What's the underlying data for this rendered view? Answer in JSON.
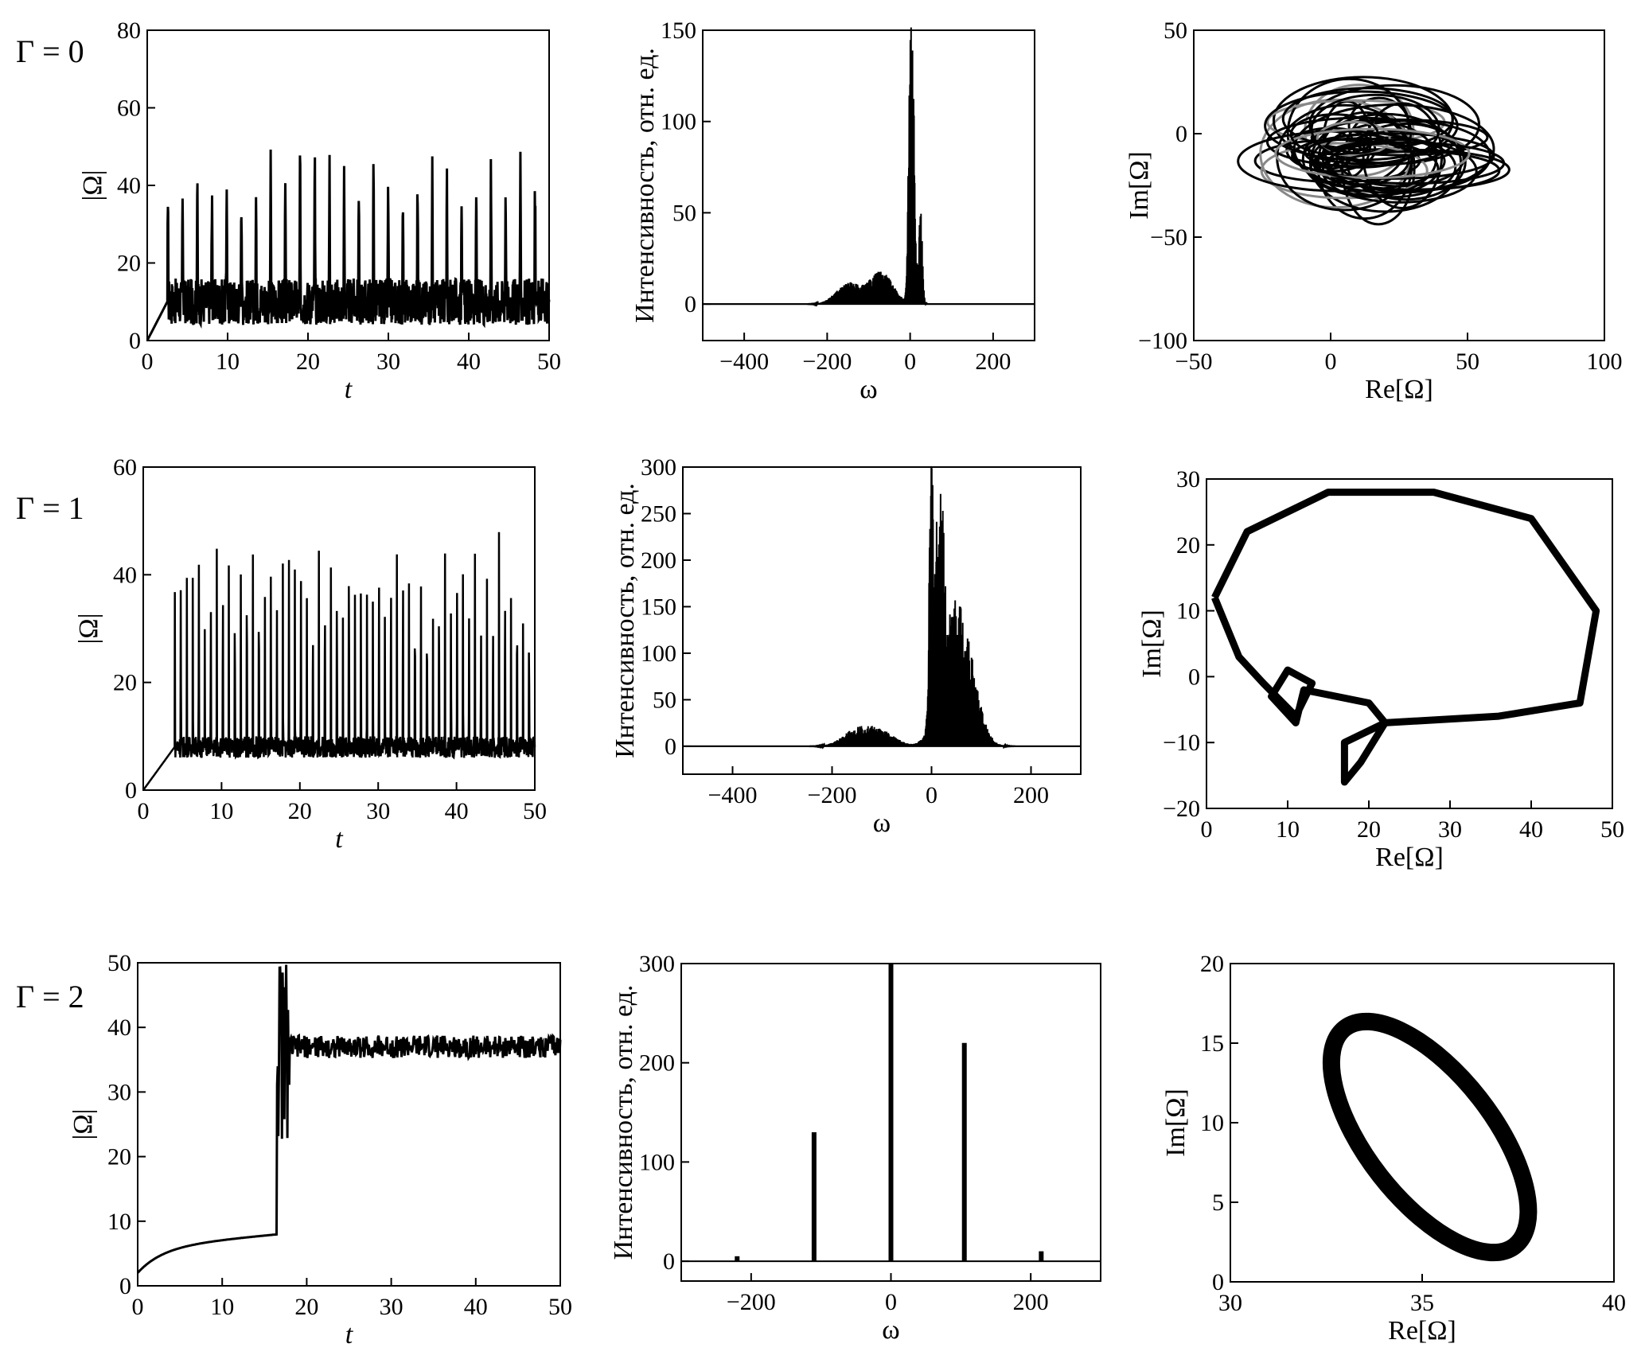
{
  "row_labels": [
    "Γ = 0",
    "Γ = 1",
    "Γ = 2"
  ],
  "chart_data": [
    {
      "row": 0,
      "type": "line",
      "xlabel": "t",
      "ylabel": "|Ω|",
      "xlim": [
        0,
        50
      ],
      "ylim": [
        0,
        80
      ],
      "xticks": [
        "0",
        "10",
        "20",
        "30",
        "40",
        "50"
      ],
      "yticks": [
        "0",
        "20",
        "40",
        "60",
        "80"
      ],
      "series": [
        {
          "kind": "spiky",
          "base": 10,
          "peak": 50,
          "spikes": 26,
          "start": 2.5
        }
      ]
    },
    {
      "row": 0,
      "type": "line",
      "xlabel": "ω",
      "ylabel": "Интенсивность, отн. ед.",
      "xlim": [
        -500,
        300
      ],
      "ylim": [
        -20,
        150
      ],
      "xticks": [
        "−400",
        "−200",
        "0",
        "200"
      ],
      "yticks": [
        "0",
        "50",
        "100",
        "150"
      ],
      "series": [
        {
          "kind": "spectrum",
          "peaks": [
            [
              0,
              150
            ],
            [
              8,
              110
            ],
            [
              25,
              55
            ],
            [
              -70,
              18
            ],
            [
              -150,
              12
            ]
          ],
          "broad": 14
        }
      ]
    },
    {
      "row": 0,
      "type": "line",
      "xlabel": "Re[Ω]",
      "ylabel": "Im[Ω]",
      "xlim": [
        -50,
        100
      ],
      "ylim": [
        -100,
        50
      ],
      "xticks": [
        "−50",
        "0",
        "50",
        "100"
      ],
      "yticks": [
        "−100",
        "−50",
        "0",
        "50"
      ],
      "series": [
        {
          "kind": "chaotic-orbit",
          "center": [
            15,
            -5
          ],
          "spread": [
            22,
            18
          ]
        }
      ]
    },
    {
      "row": 1,
      "type": "line",
      "xlabel": "t",
      "ylabel": "|Ω|",
      "xlim": [
        0,
        50
      ],
      "ylim": [
        0,
        60
      ],
      "xticks": [
        "0",
        "10",
        "20",
        "30",
        "40",
        "50"
      ],
      "yticks": [
        "0",
        "20",
        "40",
        "60"
      ],
      "series": [
        {
          "kind": "periodic-spikes",
          "base": 8,
          "peak": 49,
          "spikes": 60,
          "start": 4
        }
      ]
    },
    {
      "row": 1,
      "type": "line",
      "xlabel": "ω",
      "ylabel": "Интенсивность, отн. ед.",
      "xlim": [
        -500,
        300
      ],
      "ylim": [
        -30,
        300
      ],
      "xticks": [
        "−400",
        "−200",
        "0",
        "200"
      ],
      "yticks": [
        "0",
        "50",
        "100",
        "150",
        "200",
        "250",
        "300"
      ],
      "series": [
        {
          "kind": "spectrum",
          "peaks": [
            [
              0,
              297
            ],
            [
              12,
              190
            ],
            [
              22,
              185
            ],
            [
              45,
              90
            ],
            [
              60,
              80
            ],
            [
              -150,
              18
            ],
            [
              -100,
              15
            ]
          ],
          "broad": 15
        }
      ]
    },
    {
      "row": 1,
      "type": "line",
      "xlabel": "Re[Ω]",
      "ylabel": "Im[Ω]",
      "xlim": [
        0,
        50
      ],
      "ylim": [
        -20,
        30
      ],
      "xticks": [
        "0",
        "10",
        "20",
        "30",
        "40",
        "50"
      ],
      "yticks": [
        "−20",
        "−10",
        "0",
        "10",
        "20",
        "30"
      ],
      "series": [
        {
          "kind": "limit-cycle-loops"
        }
      ]
    },
    {
      "row": 2,
      "type": "line",
      "xlabel": "t",
      "ylabel": "|Ω|",
      "xlim": [
        0,
        50
      ],
      "ylim": [
        0,
        50
      ],
      "xticks": [
        "0",
        "10",
        "20",
        "30",
        "40",
        "50"
      ],
      "yticks": [
        "0",
        "10",
        "20",
        "30",
        "40",
        "50"
      ],
      "series": [
        {
          "kind": "settling",
          "plateau": 37,
          "jump_t": 16.5
        }
      ]
    },
    {
      "row": 2,
      "type": "line",
      "xlabel": "ω",
      "ylabel": "Интенсивность, отн. ед.",
      "xlim": [
        -300,
        300
      ],
      "ylim": [
        -20,
        300
      ],
      "xticks": [
        "−200",
        "0",
        "200"
      ],
      "yticks": [
        "0",
        "100",
        "200",
        "300"
      ],
      "series": [
        {
          "kind": "lines",
          "peaks": [
            [
              0,
              300
            ],
            [
              -110,
              130
            ],
            [
              105,
              220
            ],
            [
              -220,
              5
            ],
            [
              215,
              10
            ]
          ]
        }
      ]
    },
    {
      "row": 2,
      "type": "line",
      "xlabel": "Re[Ω]",
      "ylabel": "Im[Ω]",
      "xlim": [
        30,
        40
      ],
      "ylim": [
        0,
        20
      ],
      "xticks": [
        "30",
        "35",
        "40"
      ],
      "yticks": [
        "0",
        "5",
        "10",
        "15",
        "20"
      ],
      "series": [
        {
          "kind": "ellipse",
          "cx": 35.2,
          "cy": 9.1,
          "a": 3.6,
          "b": 1.8,
          "angle_deg": -52
        }
      ]
    }
  ]
}
